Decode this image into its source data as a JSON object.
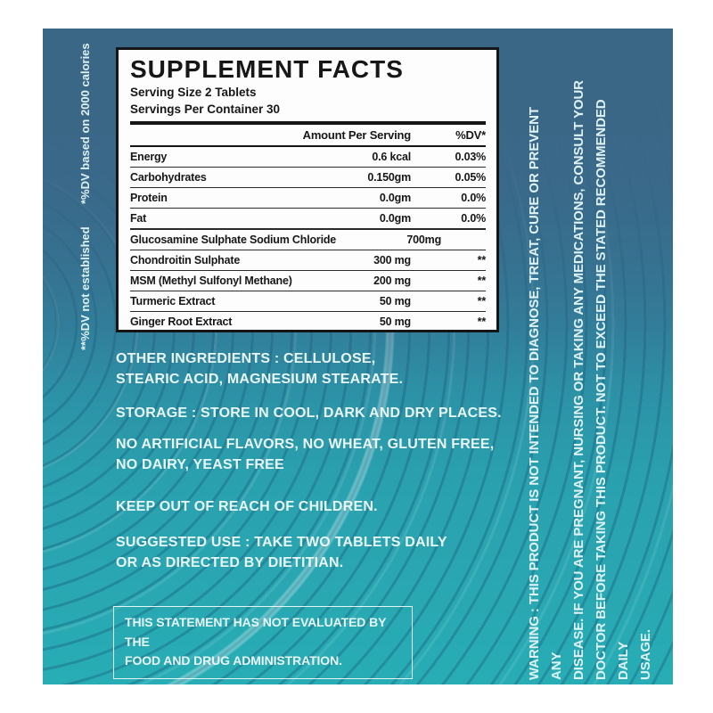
{
  "label": {
    "panel": {
      "title": "SUPPLEMENT FACTS",
      "serving_size": "Serving Size 2 Tablets",
      "servings_per_container": "Servings Per Container 30",
      "col_amount": "Amount Per Serving",
      "col_dv": "%DV*",
      "rows": [
        {
          "name": "Energy",
          "amount": "0.6 kcal",
          "dv": "0.03%"
        },
        {
          "name": "Carbohydrates",
          "amount": "0.150gm",
          "dv": "0.05%"
        },
        {
          "name": "Protein",
          "amount": "0.0gm",
          "dv": "0.0%"
        },
        {
          "name": "Fat",
          "amount": "0.0gm",
          "dv": "0.0%"
        },
        {
          "name": "Glucosamine Sulphate Sodium Chloride",
          "amount": "700mg",
          "dv": "**"
        },
        {
          "name": "Chondroitin Sulphate",
          "amount": "300 mg",
          "dv": "**"
        },
        {
          "name": "MSM (Methyl Sulfonyl Methane)",
          "amount": "200 mg",
          "dv": "**"
        },
        {
          "name": "Turmeric Extract",
          "amount": "50 mg",
          "dv": "**"
        },
        {
          "name": "Ginger Root Extract",
          "amount": "50 mg",
          "dv": "**"
        }
      ]
    },
    "notes": [
      "OTHER INGREDIENTS : CELLULOSE,\nSTEARIC ACID, MAGNESIUM STEARATE.",
      "STORAGE : STORE IN COOL, DARK AND DRY PLACES.",
      "NO ARTIFICIAL FLAVORS, NO WHEAT, GLUTEN FREE,\nNO DAIRY, YEAST FREE",
      "KEEP OUT OF REACH OF CHILDREN.",
      "SUGGESTED USE : TAKE TWO TABLETS DAILY\nOR AS DIRECTED BY DIETITIAN."
    ],
    "disclaimer": "THIS STATEMENT HAS NOT EVALUATED BY THE\nFOOD AND DRUG ADMINISTRATION.",
    "footnote_dv_basis": "*%DV based on 2000 calories",
    "footnote_dv_not_established": "**%DV not established",
    "warning": "WARNING : THIS PRODUCT IS NOT INTENDED TO DIAGNOSE, TREAT, CURE OR PREVENT ANY\nDISEASE. IF YOU ARE PREGNANT, NURSING OR TAKING ANY MEDICATIONS, CONSULT YOUR\nDOCTOR BEFORE TAKING THIS PRODUCT. NOT TO EXCEED THE STATED RECOMMENDED DAILY\nUSAGE.",
    "colors": {
      "top_blue": "#3b6787",
      "bottom_teal": "#28adb5",
      "ripple_line": "#175c7a",
      "light_text": "#e9f6f6",
      "panel_background": "#fdfdfd",
      "panel_text": "#171717"
    }
  }
}
